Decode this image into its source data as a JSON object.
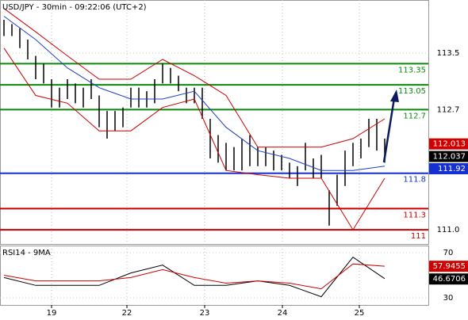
{
  "chart_data": [
    {
      "type": "hl-bars",
      "title": "USD/JPY - 30min - 09:22:06 (UTC+2)",
      "color": "#000000",
      "x": [
        0,
        1,
        2,
        3,
        4,
        5,
        6,
        7,
        8,
        9,
        10,
        11,
        12,
        13,
        14,
        15,
        16,
        17,
        18,
        19,
        20,
        21,
        22,
        23,
        24,
        25,
        26,
        27,
        28,
        29,
        30,
        31,
        32,
        33,
        34,
        35,
        36,
        37,
        38,
        39,
        40,
        41,
        42,
        43,
        44,
        45,
        46,
        47,
        48
      ],
      "high": [
        113.97,
        113.91,
        113.85,
        113.69,
        113.46,
        113.35,
        113.13,
        113.01,
        113.13,
        113.07,
        113.01,
        113.13,
        112.9,
        112.68,
        112.68,
        112.73,
        113.01,
        113.01,
        112.96,
        113.13,
        113.35,
        113.29,
        113.18,
        113.01,
        113.01,
        113.01,
        112.57,
        112.34,
        112.23,
        112.17,
        112.29,
        112.34,
        112.17,
        112.17,
        112.12,
        112.06,
        111.95,
        111.9,
        112.23,
        112.01,
        112.06,
        111.56,
        111.78,
        112.12,
        112.23,
        112.29,
        112.57,
        112.57,
        112.29
      ],
      "low": [
        113.74,
        113.74,
        113.57,
        113.41,
        113.13,
        113.07,
        112.73,
        112.73,
        112.85,
        112.79,
        112.73,
        112.85,
        112.45,
        112.29,
        112.4,
        112.45,
        112.73,
        112.73,
        112.73,
        112.79,
        113.07,
        113.07,
        112.96,
        112.79,
        112.79,
        112.57,
        112.01,
        111.95,
        111.84,
        111.84,
        111.84,
        111.9,
        111.9,
        111.9,
        111.84,
        111.84,
        111.73,
        111.62,
        111.84,
        111.73,
        111.73,
        111.06,
        111.34,
        111.62,
        111.9,
        112.01,
        112.17,
        112.12,
        111.95
      ],
      "overlay_x": [
        0,
        4,
        8,
        12,
        16,
        20,
        24,
        28,
        32,
        36,
        40,
        44,
        48
      ],
      "overlays": [
        {
          "color": "#cc0000",
          "values": [
            114.13,
            113.8,
            113.46,
            113.13,
            113.13,
            113.41,
            113.18,
            112.9,
            112.17,
            112.17,
            112.17,
            112.29,
            112.57
          ]
        },
        {
          "color": "#cc0000",
          "values": [
            113.57,
            112.9,
            112.79,
            112.4,
            112.4,
            112.73,
            112.85,
            111.84,
            111.78,
            111.73,
            111.73,
            111.0,
            111.73
          ]
        },
        {
          "color": "#1f3fbf",
          "values": [
            114.02,
            113.69,
            113.29,
            113.01,
            112.85,
            112.85,
            112.96,
            112.45,
            112.12,
            112.01,
            111.84,
            111.84,
            111.9
          ]
        }
      ],
      "levels": [
        {
          "value": 113.35,
          "color": "#0a8a0a"
        },
        {
          "value": 113.05,
          "color": "#0a8a0a"
        },
        {
          "value": 112.7,
          "color": "#0a8a0a"
        },
        {
          "value": 111.8,
          "color": "#1530d0"
        },
        {
          "value": 111.3,
          "color": "#cc0000"
        },
        {
          "value": 111,
          "color": "#cc0000"
        }
      ],
      "last_values": [
        {
          "value": 112.013,
          "color": "#d00000"
        },
        {
          "value": 112.037,
          "color": "#000000"
        },
        {
          "value": 111.92,
          "color": "#1530d0"
        }
      ],
      "xlim": [
        -0.5,
        53.5
      ],
      "ylim": [
        110.8,
        114.25
      ],
      "yticks": [
        113.5,
        112.7,
        {
          "value": 111,
          "label": "111.0"
        }
      ],
      "xticks": [
        {
          "value": 6,
          "label": "19"
        },
        {
          "value": 15.5,
          "label": "22"
        },
        {
          "value": 25.3,
          "label": "23"
        },
        {
          "value": 35.1,
          "label": "24"
        },
        {
          "value": 44.8,
          "label": "25"
        }
      ]
    },
    {
      "type": "line",
      "title": "RSI14 - 9MA",
      "x": [
        0,
        4,
        8,
        12,
        16,
        20,
        24,
        28,
        32,
        36,
        40,
        44,
        48
      ],
      "series": [
        {
          "color": "#000000",
          "values": [
            48,
            41,
            41,
            41,
            52,
            59,
            41,
            41,
            45,
            41,
            31,
            66,
            47
          ]
        },
        {
          "color": "#cc0000",
          "values": [
            50,
            45,
            45,
            45,
            48,
            55,
            48,
            43,
            45,
            43,
            38,
            60,
            58
          ]
        }
      ],
      "last_values": [
        {
          "value": 57.9455,
          "color": "#d00000"
        },
        {
          "value": 46.6706,
          "color": "#000000"
        }
      ],
      "xlim": [
        -0.5,
        53.5
      ],
      "ylim": [
        23.7,
        76.3
      ],
      "yticks": [
        70,
        30
      ]
    }
  ]
}
